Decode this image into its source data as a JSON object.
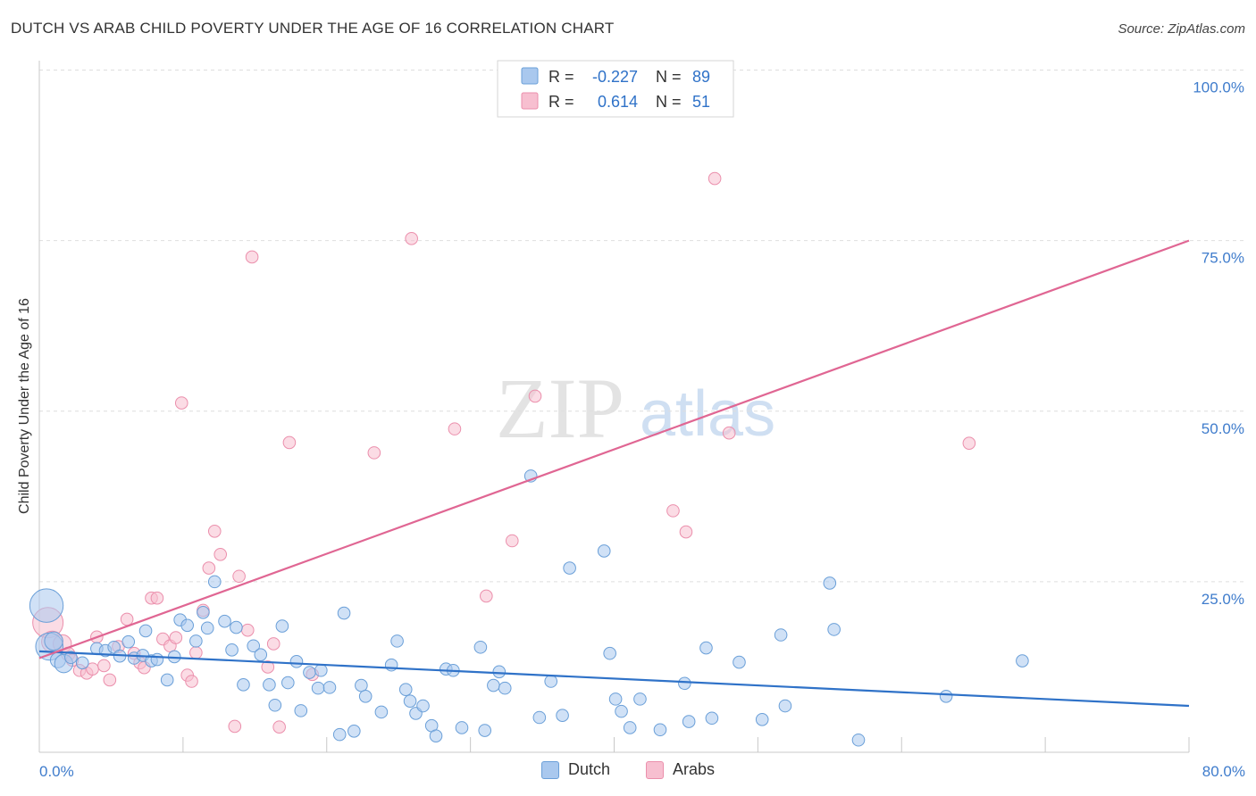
{
  "header": {
    "title": "DUTCH VS ARAB CHILD POVERTY UNDER THE AGE OF 16 CORRELATION CHART",
    "source": "Source: ZipAtlas.com"
  },
  "watermark": {
    "zip": "ZIP",
    "atlas": "atlas"
  },
  "legend_top": {
    "rows": [
      {
        "r_label": "R = ",
        "r_value": "-0.227",
        "n_label": "N = ",
        "n_value": "89"
      },
      {
        "r_label": "R = ",
        "r_value": "0.614",
        "n_label": "N = ",
        "n_value": "51"
      }
    ]
  },
  "legend_bottom": {
    "dutch": "Dutch",
    "arabs": "Arabs"
  },
  "colors": {
    "dutch_fill": "#a9c8ee",
    "dutch_stroke": "#6a9fd8",
    "dutch_line": "#2f72c8",
    "arab_fill": "#f7bfd0",
    "arab_stroke": "#eb8fac",
    "arab_line": "#e06693",
    "tick_label": "#3f7ccc",
    "grid": "#dedede"
  },
  "chart_data": {
    "type": "scatter",
    "title": "DUTCH VS ARAB CHILD POVERTY UNDER THE AGE OF 16 CORRELATION CHART",
    "xlabel": "",
    "ylabel": "Child Poverty Under the Age of 16",
    "xlim": [
      0,
      80
    ],
    "ylim": [
      0,
      100
    ],
    "x_tick_labels": [
      "0.0%",
      "80.0%"
    ],
    "y_ticks": [
      25,
      50,
      75,
      100
    ],
    "y_tick_labels": [
      "25.0%",
      "50.0%",
      "75.0%",
      "100.0%"
    ],
    "grid": true,
    "legend": "top-center",
    "series": [
      {
        "name": "Dutch",
        "r": -0.227,
        "n": 89,
        "trend": {
          "x": [
            0,
            80
          ],
          "y": [
            14.8,
            6.8
          ]
        },
        "points": [
          [
            0.5,
            21.5,
            2.2
          ],
          [
            0.7,
            15.5,
            1.8
          ],
          [
            1.0,
            16.3,
            1.2
          ],
          [
            1.3,
            13.5,
            1.0
          ],
          [
            1.7,
            13.0,
            1.2
          ],
          [
            2.2,
            13.9,
            0.8
          ],
          [
            3.0,
            13.1,
            0.8
          ],
          [
            4.0,
            15.2,
            0.8
          ],
          [
            4.6,
            14.9,
            0.8
          ],
          [
            5.2,
            15.4,
            0.8
          ],
          [
            5.6,
            14.1,
            0.8
          ],
          [
            6.2,
            16.2,
            0.8
          ],
          [
            6.6,
            13.8,
            0.8
          ],
          [
            7.2,
            14.2,
            0.8
          ],
          [
            7.4,
            17.8,
            0.8
          ],
          [
            7.8,
            13.4,
            0.8
          ],
          [
            8.2,
            13.6,
            0.8
          ],
          [
            8.9,
            10.6,
            0.8
          ],
          [
            9.4,
            14.0,
            0.8
          ],
          [
            9.8,
            19.4,
            0.8
          ],
          [
            10.3,
            18.6,
            0.8
          ],
          [
            10.9,
            16.3,
            0.8
          ],
          [
            11.4,
            20.5,
            0.8
          ],
          [
            11.7,
            18.2,
            0.8
          ],
          [
            12.2,
            25.0,
            0.8
          ],
          [
            12.9,
            19.2,
            0.8
          ],
          [
            13.4,
            15.0,
            0.8
          ],
          [
            13.7,
            18.3,
            0.8
          ],
          [
            14.2,
            9.9,
            0.8
          ],
          [
            14.9,
            15.6,
            0.8
          ],
          [
            15.4,
            14.3,
            0.8
          ],
          [
            16.0,
            9.9,
            0.8
          ],
          [
            16.4,
            6.9,
            0.8
          ],
          [
            16.9,
            18.5,
            0.8
          ],
          [
            17.3,
            10.2,
            0.8
          ],
          [
            17.9,
            13.3,
            0.8
          ],
          [
            18.2,
            6.1,
            0.8
          ],
          [
            18.8,
            11.7,
            0.8
          ],
          [
            19.4,
            9.4,
            0.8
          ],
          [
            19.6,
            12.0,
            0.8
          ],
          [
            20.2,
            9.5,
            0.8
          ],
          [
            20.9,
            2.6,
            0.8
          ],
          [
            21.2,
            20.4,
            0.8
          ],
          [
            21.9,
            3.1,
            0.8
          ],
          [
            22.4,
            9.8,
            0.8
          ],
          [
            22.7,
            8.2,
            0.8
          ],
          [
            23.8,
            5.9,
            0.8
          ],
          [
            24.5,
            12.8,
            0.8
          ],
          [
            24.9,
            16.3,
            0.8
          ],
          [
            25.5,
            9.2,
            0.8
          ],
          [
            25.8,
            7.5,
            0.8
          ],
          [
            26.2,
            5.7,
            0.8
          ],
          [
            26.7,
            6.8,
            0.8
          ],
          [
            27.3,
            3.9,
            0.8
          ],
          [
            27.6,
            2.4,
            0.8
          ],
          [
            28.3,
            12.2,
            0.8
          ],
          [
            28.8,
            12.0,
            0.8
          ],
          [
            29.4,
            3.6,
            0.8
          ],
          [
            30.7,
            15.4,
            0.8
          ],
          [
            31.0,
            3.2,
            0.8
          ],
          [
            31.6,
            9.8,
            0.8
          ],
          [
            32.0,
            11.8,
            0.8
          ],
          [
            32.4,
            9.4,
            0.8
          ],
          [
            34.2,
            40.5,
            0.8
          ],
          [
            34.8,
            5.1,
            0.8
          ],
          [
            35.6,
            10.4,
            0.8
          ],
          [
            36.4,
            5.4,
            0.8
          ],
          [
            36.9,
            27.0,
            0.8
          ],
          [
            39.3,
            29.5,
            0.8
          ],
          [
            39.7,
            14.5,
            0.8
          ],
          [
            40.1,
            7.8,
            0.8
          ],
          [
            40.5,
            6.0,
            0.8
          ],
          [
            41.1,
            3.6,
            0.8
          ],
          [
            41.8,
            7.8,
            0.8
          ],
          [
            43.2,
            3.3,
            0.8
          ],
          [
            44.9,
            10.1,
            0.8
          ],
          [
            45.2,
            4.5,
            0.8
          ],
          [
            46.4,
            15.3,
            0.8
          ],
          [
            46.8,
            5.0,
            0.8
          ],
          [
            48.7,
            13.2,
            0.8
          ],
          [
            50.3,
            4.8,
            0.8
          ],
          [
            51.6,
            17.2,
            0.8
          ],
          [
            51.9,
            6.8,
            0.8
          ],
          [
            55.0,
            24.8,
            0.8
          ],
          [
            55.3,
            18.0,
            0.8
          ],
          [
            57.0,
            1.8,
            0.8
          ],
          [
            63.1,
            8.2,
            0.8
          ],
          [
            68.4,
            13.4,
            0.8
          ]
        ]
      },
      {
        "name": "Arabs",
        "r": 0.614,
        "n": 51,
        "trend": {
          "x": [
            0,
            80
          ],
          "y": [
            13.8,
            75.0
          ]
        },
        "points": [
          [
            0.6,
            19.0,
            2.0
          ],
          [
            0.9,
            16.2,
            1.4
          ],
          [
            1.6,
            15.9,
            1.2
          ],
          [
            2.0,
            14.4,
            0.9
          ],
          [
            2.3,
            13.5,
            0.8
          ],
          [
            2.8,
            12.0,
            0.8
          ],
          [
            3.3,
            11.6,
            0.8
          ],
          [
            3.7,
            12.2,
            0.8
          ],
          [
            4.0,
            16.9,
            0.8
          ],
          [
            4.5,
            12.7,
            0.8
          ],
          [
            4.9,
            10.6,
            0.8
          ],
          [
            5.5,
            15.5,
            0.8
          ],
          [
            6.1,
            19.5,
            0.8
          ],
          [
            6.6,
            14.5,
            0.8
          ],
          [
            7.0,
            13.1,
            0.8
          ],
          [
            7.3,
            12.4,
            0.8
          ],
          [
            7.8,
            22.6,
            0.8
          ],
          [
            8.2,
            22.6,
            0.8
          ],
          [
            8.6,
            16.6,
            0.8
          ],
          [
            9.1,
            15.6,
            0.8
          ],
          [
            9.5,
            16.8,
            0.8
          ],
          [
            9.9,
            51.2,
            0.8
          ],
          [
            10.3,
            11.3,
            0.8
          ],
          [
            10.6,
            10.4,
            0.8
          ],
          [
            10.9,
            14.6,
            0.8
          ],
          [
            11.4,
            20.8,
            0.8
          ],
          [
            11.8,
            27.0,
            0.8
          ],
          [
            12.2,
            32.4,
            0.8
          ],
          [
            12.6,
            29.0,
            0.8
          ],
          [
            13.6,
            3.8,
            0.8
          ],
          [
            13.9,
            25.8,
            0.8
          ],
          [
            14.5,
            17.9,
            0.8
          ],
          [
            14.8,
            72.6,
            0.8
          ],
          [
            15.9,
            12.5,
            0.8
          ],
          [
            16.3,
            15.9,
            0.8
          ],
          [
            16.7,
            3.7,
            0.8
          ],
          [
            17.4,
            45.4,
            0.8
          ],
          [
            19.0,
            11.4,
            0.8
          ],
          [
            23.3,
            43.9,
            0.8
          ],
          [
            25.9,
            75.3,
            0.8
          ],
          [
            28.9,
            47.4,
            0.8
          ],
          [
            31.1,
            22.9,
            0.8
          ],
          [
            32.9,
            31.0,
            0.8
          ],
          [
            34.5,
            52.2,
            0.8
          ],
          [
            44.1,
            35.4,
            0.8
          ],
          [
            45.0,
            32.3,
            0.8
          ],
          [
            47.0,
            84.1,
            0.8
          ],
          [
            48.0,
            46.8,
            0.8
          ],
          [
            64.7,
            45.3,
            0.8
          ]
        ]
      }
    ]
  }
}
